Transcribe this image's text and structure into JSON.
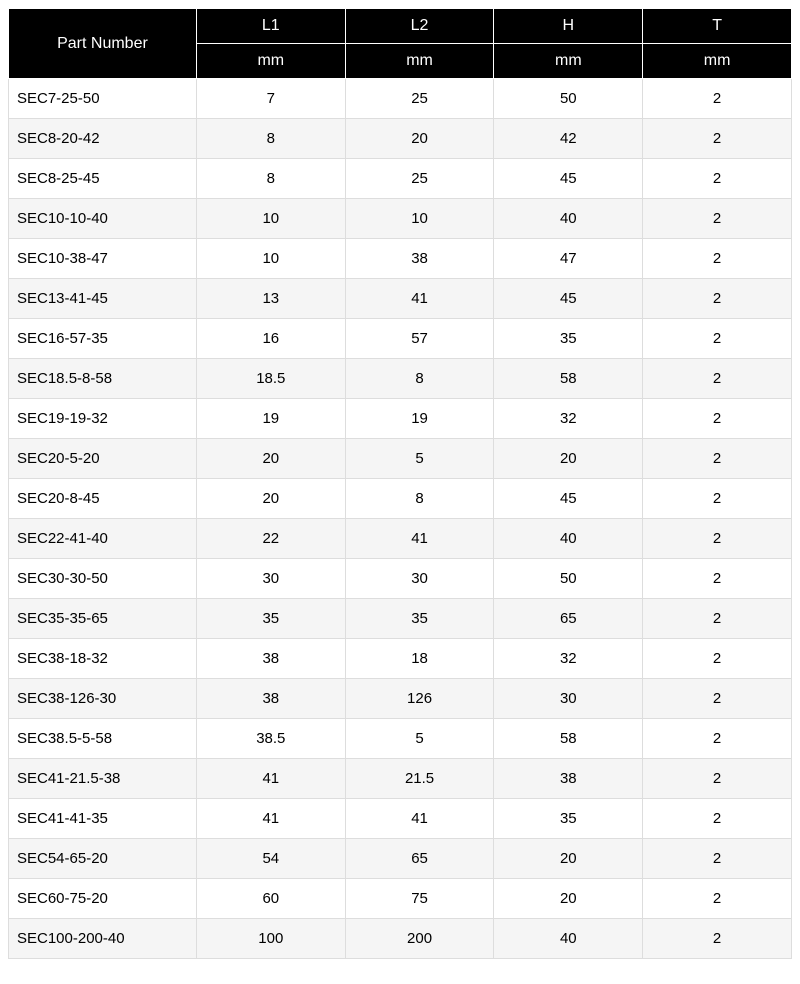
{
  "table": {
    "type": "table",
    "header_bg": "#000000",
    "header_fg": "#ffffff",
    "row_odd_bg": "#ffffff",
    "row_even_bg": "#f5f5f5",
    "border_color": "#dddddd",
    "header_border_color": "#ffffff",
    "font_family": "Arial",
    "body_fontsize": 15,
    "header_fontsize": 16,
    "column_widths_pct": [
      24,
      19,
      19,
      19,
      19
    ],
    "columns": {
      "part_number": {
        "label": "Part Number",
        "align": "left"
      },
      "l1": {
        "label": "L1",
        "unit": "mm",
        "align": "center"
      },
      "l2": {
        "label": "L2",
        "unit": "mm",
        "align": "center"
      },
      "h": {
        "label": "H",
        "unit": "mm",
        "align": "center"
      },
      "t": {
        "label": "T",
        "unit": "mm",
        "align": "center"
      }
    },
    "rows": [
      {
        "part": "SEC7-25-50",
        "l1": "7",
        "l2": "25",
        "h": "50",
        "t": "2"
      },
      {
        "part": "SEC8-20-42",
        "l1": "8",
        "l2": "20",
        "h": "42",
        "t": "2"
      },
      {
        "part": "SEC8-25-45",
        "l1": "8",
        "l2": "25",
        "h": "45",
        "t": "2"
      },
      {
        "part": "SEC10-10-40",
        "l1": "10",
        "l2": "10",
        "h": "40",
        "t": "2"
      },
      {
        "part": "SEC10-38-47",
        "l1": "10",
        "l2": "38",
        "h": "47",
        "t": "2"
      },
      {
        "part": "SEC13-41-45",
        "l1": "13",
        "l2": "41",
        "h": "45",
        "t": "2"
      },
      {
        "part": "SEC16-57-35",
        "l1": "16",
        "l2": "57",
        "h": "35",
        "t": "2"
      },
      {
        "part": "SEC18.5-8-58",
        "l1": "18.5",
        "l2": "8",
        "h": "58",
        "t": "2"
      },
      {
        "part": "SEC19-19-32",
        "l1": "19",
        "l2": "19",
        "h": "32",
        "t": "2"
      },
      {
        "part": "SEC20-5-20",
        "l1": "20",
        "l2": "5",
        "h": "20",
        "t": "2"
      },
      {
        "part": "SEC20-8-45",
        "l1": "20",
        "l2": "8",
        "h": "45",
        "t": "2"
      },
      {
        "part": "SEC22-41-40",
        "l1": "22",
        "l2": "41",
        "h": "40",
        "t": "2"
      },
      {
        "part": "SEC30-30-50",
        "l1": "30",
        "l2": "30",
        "h": "50",
        "t": "2"
      },
      {
        "part": "SEC35-35-65",
        "l1": "35",
        "l2": "35",
        "h": "65",
        "t": "2"
      },
      {
        "part": "SEC38-18-32",
        "l1": "38",
        "l2": "18",
        "h": "32",
        "t": "2"
      },
      {
        "part": "SEC38-126-30",
        "l1": "38",
        "l2": "126",
        "h": "30",
        "t": "2"
      },
      {
        "part": "SEC38.5-5-58",
        "l1": "38.5",
        "l2": "5",
        "h": "58",
        "t": "2"
      },
      {
        "part": "SEC41-21.5-38",
        "l1": "41",
        "l2": "21.5",
        "h": "38",
        "t": "2"
      },
      {
        "part": "SEC41-41-35",
        "l1": "41",
        "l2": "41",
        "h": "35",
        "t": "2"
      },
      {
        "part": "SEC54-65-20",
        "l1": "54",
        "l2": "65",
        "h": "20",
        "t": "2"
      },
      {
        "part": "SEC60-75-20",
        "l1": "60",
        "l2": "75",
        "h": "20",
        "t": "2"
      },
      {
        "part": "SEC100-200-40",
        "l1": "100",
        "l2": "200",
        "h": "40",
        "t": "2"
      }
    ]
  }
}
